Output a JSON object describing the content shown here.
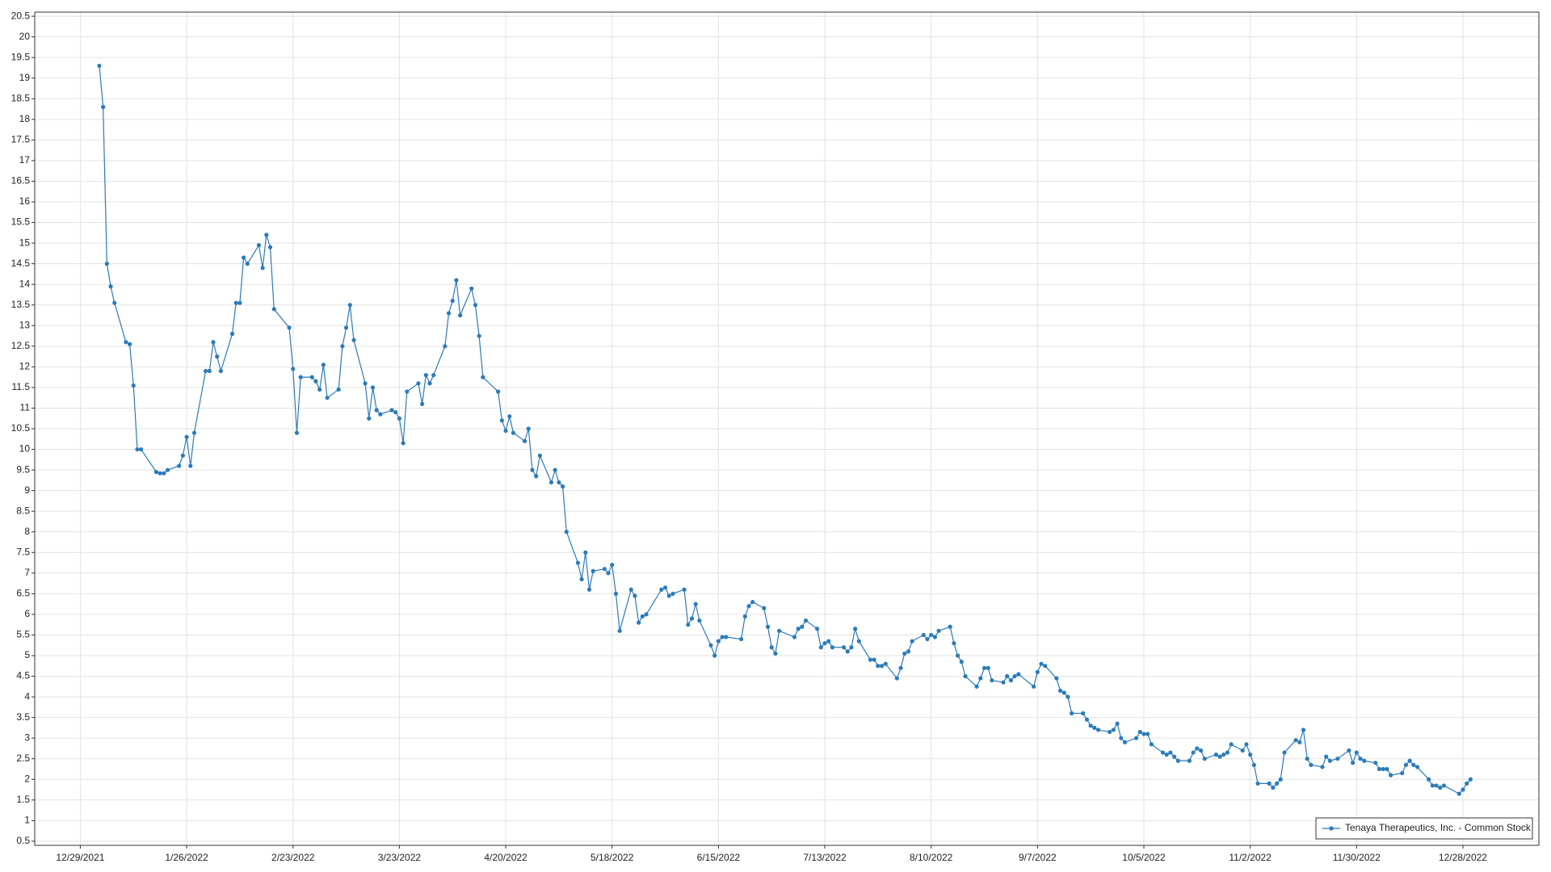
{
  "chart_data": {
    "type": "line",
    "grid": true,
    "legend": "lower right",
    "xlim": [
      "12/17/2021",
      "1/17/2023"
    ],
    "xticks": [
      "12/29/2021",
      "1/26/2022",
      "2/23/2022",
      "3/23/2022",
      "4/20/2022",
      "5/18/2022",
      "6/15/2022",
      "7/13/2022",
      "8/10/2022",
      "9/7/2022",
      "10/5/2022",
      "11/2/2022",
      "11/30/2022",
      "12/28/2022"
    ],
    "ylim": [
      0.4,
      20.6
    ],
    "yticks": [
      0.5,
      1,
      1.5,
      2,
      2.5,
      3,
      3.5,
      4,
      4.5,
      5,
      5.5,
      6,
      6.5,
      7,
      7.5,
      8,
      8.5,
      9,
      9.5,
      10,
      10.5,
      11,
      11.5,
      12,
      12.5,
      13,
      13.5,
      14,
      14.5,
      15,
      15.5,
      16,
      16.5,
      17,
      17.5,
      18,
      18.5,
      19,
      19.5,
      20,
      20.5
    ],
    "x": [
      "1/3/2022",
      "1/4/2022",
      "1/5/2022",
      "1/6/2022",
      "1/7/2022",
      "1/10/2022",
      "1/11/2022",
      "1/12/2022",
      "1/13/2022",
      "1/14/2022",
      "1/18/2022",
      "1/19/2022",
      "1/20/2022",
      "1/21/2022",
      "1/24/2022",
      "1/25/2022",
      "1/26/2022",
      "1/27/2022",
      "1/28/2022",
      "1/31/2022",
      "2/1/2022",
      "2/2/2022",
      "2/3/2022",
      "2/4/2022",
      "2/7/2022",
      "2/8/2022",
      "2/9/2022",
      "2/10/2022",
      "2/11/2022",
      "2/14/2022",
      "2/15/2022",
      "2/16/2022",
      "2/17/2022",
      "2/18/2022",
      "2/22/2022",
      "2/23/2022",
      "2/24/2022",
      "2/25/2022",
      "2/28/2022",
      "3/1/2022",
      "3/2/2022",
      "3/3/2022",
      "3/4/2022",
      "3/7/2022",
      "3/8/2022",
      "3/9/2022",
      "3/10/2022",
      "3/11/2022",
      "3/14/2022",
      "3/15/2022",
      "3/16/2022",
      "3/17/2022",
      "3/18/2022",
      "3/21/2022",
      "3/22/2022",
      "3/23/2022",
      "3/24/2022",
      "3/25/2022",
      "3/28/2022",
      "3/29/2022",
      "3/30/2022",
      "3/31/2022",
      "4/1/2022",
      "4/4/2022",
      "4/5/2022",
      "4/6/2022",
      "4/7/2022",
      "4/8/2022",
      "4/11/2022",
      "4/12/2022",
      "4/13/2022",
      "4/14/2022",
      "4/18/2022",
      "4/19/2022",
      "4/20/2022",
      "4/21/2022",
      "4/22/2022",
      "4/25/2022",
      "4/26/2022",
      "4/27/2022",
      "4/28/2022",
      "4/29/2022",
      "5/2/2022",
      "5/3/2022",
      "5/4/2022",
      "5/5/2022",
      "5/6/2022",
      "5/9/2022",
      "5/10/2022",
      "5/11/2022",
      "5/12/2022",
      "5/13/2022",
      "5/16/2022",
      "5/17/2022",
      "5/18/2022",
      "5/19/2022",
      "5/20/2022",
      "5/23/2022",
      "5/24/2022",
      "5/25/2022",
      "5/26/2022",
      "5/27/2022",
      "5/31/2022",
      "6/1/2022",
      "6/2/2022",
      "6/3/2022",
      "6/6/2022",
      "6/7/2022",
      "6/8/2022",
      "6/9/2022",
      "6/10/2022",
      "6/13/2022",
      "6/14/2022",
      "6/15/2022",
      "6/16/2022",
      "6/17/2022",
      "6/21/2022",
      "6/22/2022",
      "6/23/2022",
      "6/24/2022",
      "6/27/2022",
      "6/28/2022",
      "6/29/2022",
      "6/30/2022",
      "7/1/2022",
      "7/5/2022",
      "7/6/2022",
      "7/7/2022",
      "7/8/2022",
      "7/11/2022",
      "7/12/2022",
      "7/13/2022",
      "7/14/2022",
      "7/15/2022",
      "7/18/2022",
      "7/19/2022",
      "7/20/2022",
      "7/21/2022",
      "7/22/2022",
      "7/25/2022",
      "7/26/2022",
      "7/27/2022",
      "7/28/2022",
      "7/29/2022",
      "8/1/2022",
      "8/2/2022",
      "8/3/2022",
      "8/4/2022",
      "8/5/2022",
      "8/8/2022",
      "8/9/2022",
      "8/10/2022",
      "8/11/2022",
      "8/12/2022",
      "8/15/2022",
      "8/16/2022",
      "8/17/2022",
      "8/18/2022",
      "8/19/2022",
      "8/22/2022",
      "8/23/2022",
      "8/24/2022",
      "8/25/2022",
      "8/26/2022",
      "8/29/2022",
      "8/30/2022",
      "8/31/2022",
      "9/1/2022",
      "9/2/2022",
      "9/6/2022",
      "9/7/2022",
      "9/8/2022",
      "9/9/2022",
      "9/12/2022",
      "9/13/2022",
      "9/14/2022",
      "9/15/2022",
      "9/16/2022",
      "9/19/2022",
      "9/20/2022",
      "9/21/2022",
      "9/22/2022",
      "9/23/2022",
      "9/26/2022",
      "9/27/2022",
      "9/28/2022",
      "9/29/2022",
      "9/30/2022",
      "10/3/2022",
      "10/4/2022",
      "10/5/2022",
      "10/6/2022",
      "10/7/2022",
      "10/10/2022",
      "10/11/2022",
      "10/12/2022",
      "10/13/2022",
      "10/14/2022",
      "10/17/2022",
      "10/18/2022",
      "10/19/2022",
      "10/20/2022",
      "10/21/2022",
      "10/24/2022",
      "10/25/2022",
      "10/26/2022",
      "10/27/2022",
      "10/28/2022",
      "10/31/2022",
      "11/1/2022",
      "11/2/2022",
      "11/3/2022",
      "11/4/2022",
      "11/7/2022",
      "11/8/2022",
      "11/9/2022",
      "11/10/2022",
      "11/11/2022",
      "11/14/2022",
      "11/15/2022",
      "11/16/2022",
      "11/17/2022",
      "11/18/2022",
      "11/21/2022",
      "11/22/2022",
      "11/23/2022",
      "11/25/2022",
      "11/28/2022",
      "11/29/2022",
      "11/30/2022",
      "12/1/2022",
      "12/2/2022",
      "12/5/2022",
      "12/6/2022",
      "12/7/2022",
      "12/8/2022",
      "12/9/2022",
      "12/12/2022",
      "12/13/2022",
      "12/14/2022",
      "12/15/2022",
      "12/16/2022",
      "12/19/2022",
      "12/20/2022",
      "12/21/2022",
      "12/22/2022",
      "12/23/2022",
      "12/27/2022",
      "12/28/2022",
      "12/29/2022",
      "12/30/2022"
    ],
    "series": [
      {
        "name": "Tenaya Therapeutics, Inc. - Common Stock",
        "color": "#2b7bb9",
        "values": [
          19.3,
          18.3,
          14.5,
          13.95,
          13.55,
          12.6,
          12.55,
          11.55,
          10.0,
          10.0,
          9.45,
          9.42,
          9.42,
          9.5,
          9.6,
          9.85,
          10.3,
          9.6,
          10.4,
          11.9,
          11.9,
          12.6,
          12.25,
          11.9,
          12.8,
          13.55,
          13.55,
          14.65,
          14.5,
          14.95,
          14.4,
          15.2,
          14.9,
          13.4,
          12.95,
          11.95,
          10.4,
          11.75,
          11.75,
          11.65,
          11.45,
          12.05,
          11.25,
          11.45,
          12.5,
          12.95,
          13.5,
          12.65,
          11.6,
          10.75,
          11.5,
          10.95,
          10.85,
          10.95,
          10.9,
          10.75,
          10.15,
          11.4,
          11.6,
          11.1,
          11.8,
          11.6,
          11.8,
          12.5,
          13.3,
          13.6,
          14.1,
          13.25,
          13.9,
          13.5,
          12.75,
          11.75,
          11.4,
          10.7,
          10.45,
          10.8,
          10.4,
          10.2,
          10.5,
          9.5,
          9.35,
          9.85,
          9.2,
          9.5,
          9.2,
          9.1,
          8.0,
          7.25,
          6.85,
          7.5,
          6.6,
          7.05,
          7.1,
          7.0,
          7.2,
          6.5,
          5.6,
          6.6,
          6.45,
          5.8,
          5.95,
          6.0,
          6.6,
          6.65,
          6.45,
          6.5,
          6.6,
          5.75,
          5.9,
          6.25,
          5.85,
          5.25,
          5.0,
          5.35,
          5.45,
          5.45,
          5.4,
          5.95,
          6.2,
          6.3,
          6.15,
          5.7,
          5.2,
          5.05,
          5.6,
          5.45,
          5.65,
          5.7,
          5.85,
          5.65,
          5.2,
          5.3,
          5.35,
          5.2,
          5.2,
          5.1,
          5.2,
          5.65,
          5.35,
          4.9,
          4.9,
          4.75,
          4.75,
          4.8,
          4.45,
          4.7,
          5.05,
          5.1,
          5.35,
          5.5,
          5.4,
          5.5,
          5.45,
          5.6,
          5.7,
          5.3,
          5.0,
          4.85,
          4.5,
          4.25,
          4.45,
          4.7,
          4.7,
          4.4,
          4.35,
          4.5,
          4.4,
          4.5,
          4.55,
          4.25,
          4.6,
          4.8,
          4.75,
          4.45,
          4.15,
          4.1,
          4.0,
          3.6,
          3.6,
          3.45,
          3.3,
          3.25,
          3.2,
          3.15,
          3.2,
          3.35,
          3.0,
          2.9,
          3.0,
          3.15,
          3.1,
          3.1,
          2.85,
          2.65,
          2.6,
          2.65,
          2.55,
          2.45,
          2.45,
          2.65,
          2.75,
          2.7,
          2.5,
          2.6,
          2.55,
          2.6,
          2.65,
          2.85,
          2.7,
          2.85,
          2.6,
          2.35,
          1.9,
          1.9,
          1.8,
          1.9,
          2.0,
          2.65,
          2.95,
          2.9,
          3.2,
          2.5,
          2.35,
          2.3,
          2.55,
          2.45,
          2.5,
          2.7,
          2.4,
          2.65,
          2.5,
          2.45,
          2.4,
          2.25,
          2.25,
          2.25,
          2.1,
          2.15,
          2.35,
          2.45,
          2.35,
          2.3,
          2.0,
          1.85,
          1.85,
          1.8,
          1.85,
          1.65,
          1.75,
          1.9,
          2.0
        ]
      }
    ]
  }
}
